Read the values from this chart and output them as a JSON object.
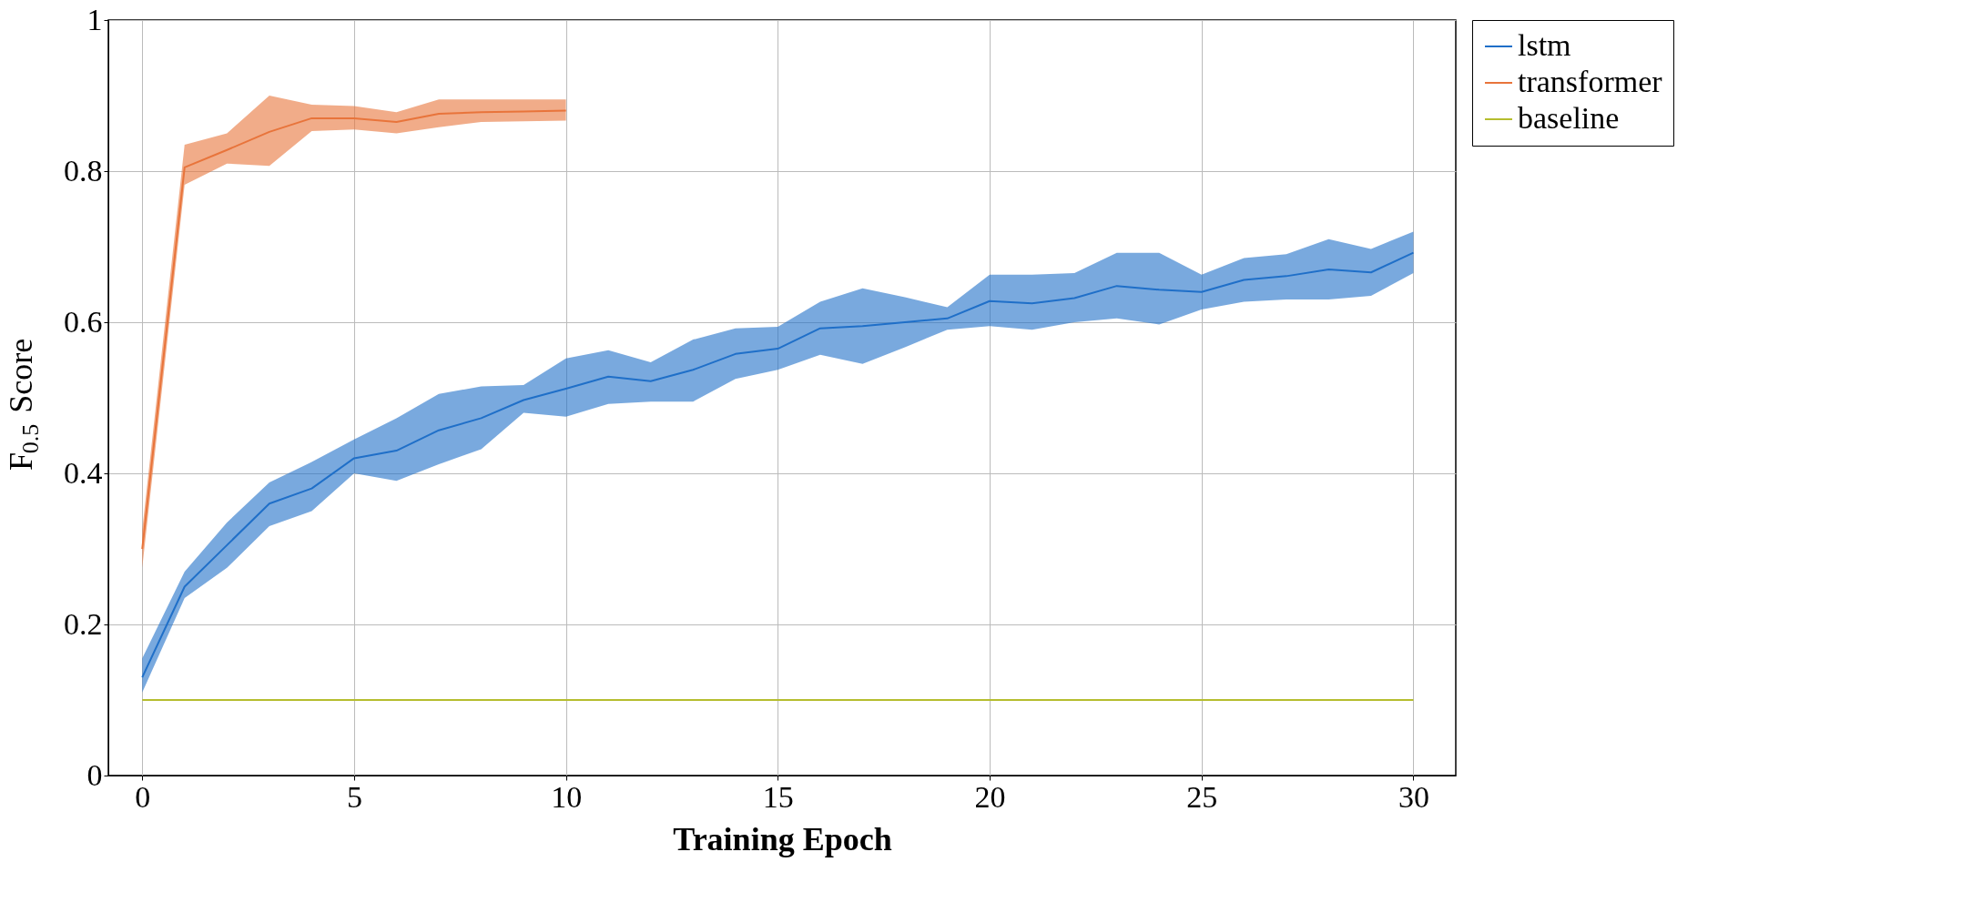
{
  "chart_data": {
    "type": "line",
    "xlabel": "Training Epoch",
    "ylabel": "F$_{0.5}$ Score",
    "xlim": [
      -0.8,
      31
    ],
    "ylim": [
      0,
      1
    ],
    "xticks": [
      0,
      5,
      10,
      15,
      20,
      25,
      30
    ],
    "yticks": [
      0,
      0.2,
      0.4,
      0.6,
      0.8,
      1
    ],
    "grid": true,
    "legend": "top right",
    "line_style": "solid",
    "marker": "none",
    "series": [
      {
        "name": "lstm",
        "color": "#1f6fc8",
        "x": [
          0,
          1,
          2,
          3,
          4,
          5,
          6,
          7,
          8,
          9,
          10,
          11,
          12,
          13,
          14,
          15,
          16,
          17,
          18,
          19,
          20,
          21,
          22,
          23,
          24,
          25,
          26,
          27,
          28,
          29,
          30
        ],
        "values": [
          0.13,
          0.25,
          0.305,
          0.36,
          0.38,
          0.42,
          0.43,
          0.457,
          0.473,
          0.497,
          0.512,
          0.528,
          0.522,
          0.537,
          0.558,
          0.565,
          0.592,
          0.595,
          0.6,
          0.605,
          0.628,
          0.625,
          0.632,
          0.648,
          0.643,
          0.64,
          0.656,
          0.661,
          0.67,
          0.666,
          0.692
        ],
        "lower": [
          0.11,
          0.235,
          0.275,
          0.33,
          0.35,
          0.4,
          0.39,
          0.412,
          0.432,
          0.48,
          0.475,
          0.492,
          0.495,
          0.495,
          0.525,
          0.537,
          0.557,
          0.545,
          0.567,
          0.59,
          0.595,
          0.59,
          0.6,
          0.605,
          0.597,
          0.617,
          0.627,
          0.63,
          0.63,
          0.635,
          0.665
        ],
        "upper": [
          0.155,
          0.27,
          0.335,
          0.388,
          0.415,
          0.445,
          0.473,
          0.505,
          0.515,
          0.517,
          0.552,
          0.563,
          0.547,
          0.577,
          0.592,
          0.594,
          0.627,
          0.645,
          0.633,
          0.62,
          0.663,
          0.663,
          0.665,
          0.692,
          0.692,
          0.663,
          0.685,
          0.69,
          0.71,
          0.697,
          0.72
        ]
      },
      {
        "name": "transformer",
        "color": "#e8743b",
        "x": [
          0,
          1,
          2,
          3,
          4,
          5,
          6,
          7,
          8,
          9,
          10
        ],
        "values": [
          0.3,
          0.805,
          0.828,
          0.852,
          0.87,
          0.87,
          0.865,
          0.876,
          0.878,
          0.879,
          0.88
        ],
        "lower": [
          0.275,
          0.782,
          0.81,
          0.807,
          0.853,
          0.855,
          0.85,
          0.858,
          0.865,
          0.866,
          0.867
        ],
        "upper": [
          0.325,
          0.835,
          0.85,
          0.9,
          0.888,
          0.886,
          0.878,
          0.895,
          0.895,
          0.895,
          0.895
        ]
      },
      {
        "name": "baseline",
        "color": "#b5bd2e",
        "x": [
          0,
          30
        ],
        "values": [
          0.1,
          0.1
        ]
      }
    ]
  }
}
